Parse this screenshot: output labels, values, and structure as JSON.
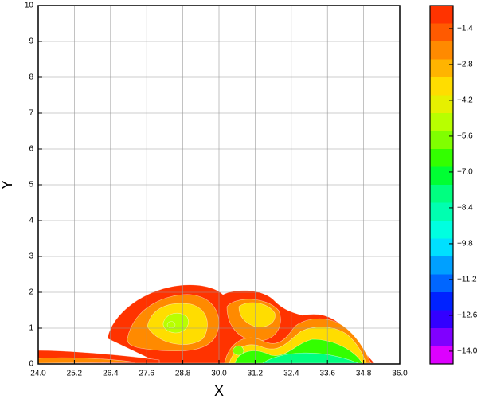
{
  "chart_data": {
    "type": "contour",
    "x_label": "X",
    "y_label": "Y",
    "xlim": [
      24,
      36
    ],
    "ylim": [
      0,
      10
    ],
    "xticks": [
      {
        "value": 24,
        "label": "24.0"
      },
      25.2,
      26.4,
      27.6,
      28.8,
      {
        "value": 30,
        "label": "30.0"
      },
      31.2,
      32.4,
      33.6,
      34.8,
      {
        "value": 36,
        "label": "36.0"
      }
    ],
    "yticks": [
      0,
      1,
      2,
      3,
      4,
      5,
      6,
      7,
      8,
      9,
      10
    ],
    "grid": true,
    "colorbar": {
      "clim": [
        -14.5,
        -0.5
      ],
      "ticks": [
        {
          "value": -1.4,
          "label": "−1.4"
        },
        {
          "value": -2.8,
          "label": "−2.8"
        },
        {
          "value": -4.2,
          "label": "−4.2"
        },
        {
          "value": -5.6,
          "label": "−5.6"
        },
        {
          "value": -7.0,
          "label": "−7.0"
        },
        {
          "value": -8.4,
          "label": "−8.4"
        },
        {
          "value": -9.8,
          "label": "−9.8"
        },
        {
          "value": -11.2,
          "label": "−11.2"
        },
        {
          "value": -12.6,
          "label": "−12.6"
        },
        {
          "value": -14.0,
          "label": "−14.0"
        }
      ],
      "colors": [
        "#ff3300",
        "#ff5a00",
        "#ff8a00",
        "#ffb400",
        "#ffdd00",
        "#e6f000",
        "#b8ff00",
        "#80ff00",
        "#33ff00",
        "#00ff33",
        "#00ff80",
        "#00ffb0",
        "#00ffe0",
        "#00e0ff",
        "#00a0ff",
        "#0066ff",
        "#0022ff",
        "#3300ff",
        "#8000ff",
        "#dd00ff"
      ]
    }
  }
}
